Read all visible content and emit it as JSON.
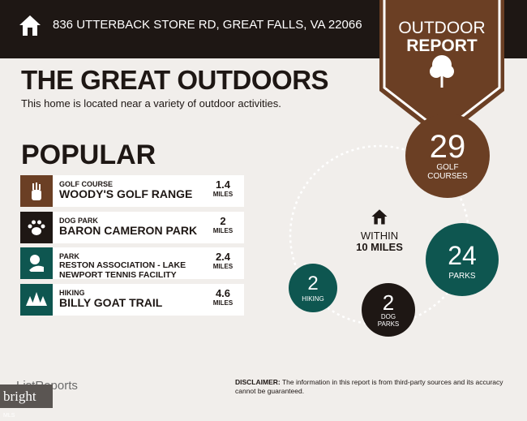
{
  "header": {
    "address": "836 UTTERBACK STORE RD, GREAT FALLS, VA 22066",
    "badge_line1": "OUTDOOR",
    "badge_line2": "REPORT",
    "icons": [
      "house-icon",
      "tree-icon"
    ]
  },
  "title": "THE GREAT OUTDOORS",
  "subtitle": "This home is located near a variety of outdoor activities.",
  "popular": {
    "heading": "POPULAR",
    "items": [
      {
        "category": "GOLF COURSE",
        "name": "WOODY'S GOLF RANGE",
        "distance": "1.4",
        "unit": "MILES",
        "color": "#6b3f24",
        "icon": "golf-bag-icon"
      },
      {
        "category": "DOG PARK",
        "name": "BARON CAMERON PARK",
        "distance": "2",
        "unit": "MILES",
        "color": "#1e1714",
        "icon": "paw-icon"
      },
      {
        "category": "PARK",
        "name": "RESTON ASSOCIATION - LAKE NEWPORT TENNIS FACILITY",
        "distance": "2.4",
        "unit": "MILES",
        "color": "#0e5650",
        "icon": "park-icon"
      },
      {
        "category": "HIKING",
        "name": "BILLY GOAT TRAIL",
        "distance": "4.6",
        "unit": "MILES",
        "color": "#0e5650",
        "icon": "pine-trees-icon"
      }
    ]
  },
  "summary": {
    "within_line1": "WITHIN",
    "within_line2": "10 MILES",
    "counts": [
      {
        "value": "29",
        "label": "GOLF COURSES",
        "color": "#6b3f24"
      },
      {
        "value": "24",
        "label": "PARKS",
        "color": "#0e5650"
      },
      {
        "value": "2",
        "label": "DOG PARKS",
        "color": "#1e1714"
      },
      {
        "value": "2",
        "label": "HIKING",
        "color": "#0e5650"
      }
    ]
  },
  "footer": {
    "logo": "ListReports",
    "disclaimer_label": "DISCLAIMER:",
    "disclaimer_text": " The information in this report is from third-party sources and its accuracy cannot be guaranteed.",
    "watermark": "bright",
    "watermark_sub": "MLS"
  }
}
